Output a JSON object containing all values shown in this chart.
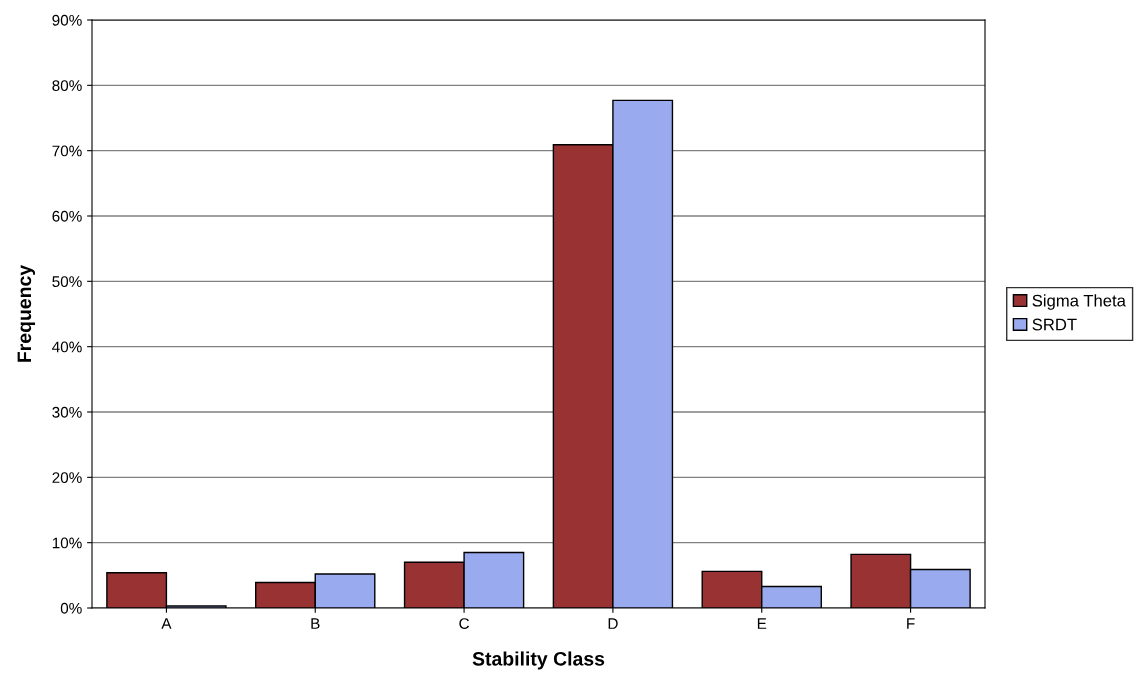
{
  "chart_data": {
    "type": "bar",
    "xlabel": "Stability Class",
    "ylabel": "Frequency",
    "categories": [
      "A",
      "B",
      "C",
      "D",
      "E",
      "F"
    ],
    "series": [
      {
        "name": "Sigma Theta",
        "color": "#993333",
        "values": [
          5.4,
          3.9,
          7.0,
          70.9,
          5.6,
          8.2
        ]
      },
      {
        "name": "SRDT",
        "color": "#99aaee",
        "values": [
          0.3,
          5.2,
          8.5,
          77.7,
          3.3,
          5.9
        ]
      }
    ],
    "ylim": [
      0,
      90
    ],
    "yticks": [
      {
        "value": 0,
        "label": "0%"
      },
      {
        "value": 10,
        "label": "10%"
      },
      {
        "value": 20,
        "label": "20%"
      },
      {
        "value": 30,
        "label": "30%"
      },
      {
        "value": 40,
        "label": "40%"
      },
      {
        "value": 50,
        "label": "50%"
      },
      {
        "value": 60,
        "label": "60%"
      },
      {
        "value": 70,
        "label": "70%"
      },
      {
        "value": 80,
        "label": "80%"
      },
      {
        "value": 90,
        "label": "90%"
      }
    ],
    "grid": "y",
    "legend": "right"
  }
}
